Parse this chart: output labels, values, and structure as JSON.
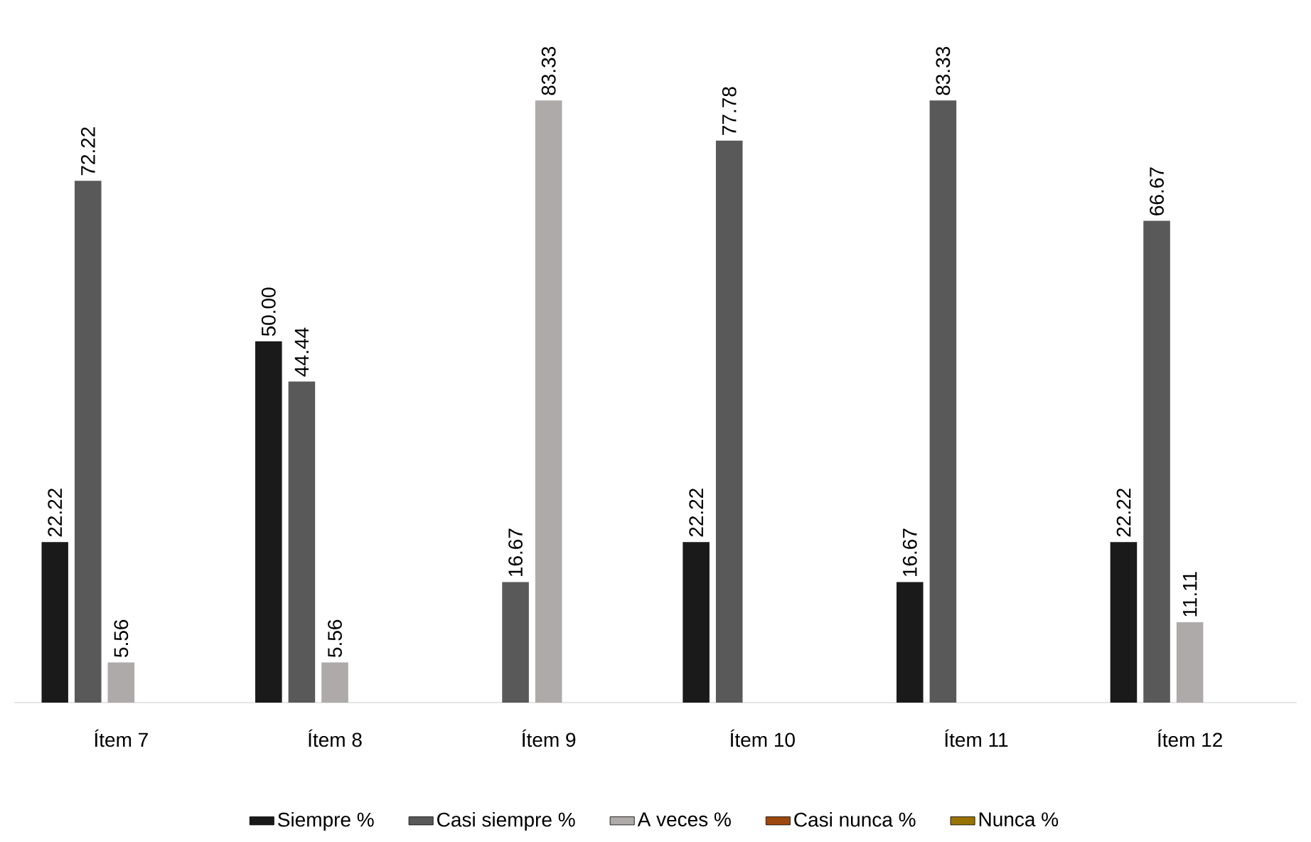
{
  "chart_data": {
    "type": "bar",
    "categories": [
      "Ítem 7",
      "Ítem 8",
      "Ítem 9",
      "Ítem 10",
      "Ítem 11",
      "Ítem 12"
    ],
    "series": [
      {
        "name": "Siempre %",
        "color": "#1a1a1a",
        "values": [
          22.22,
          50.0,
          null,
          22.22,
          16.67,
          22.22
        ],
        "value_labels": [
          "22.22",
          "50.00",
          null,
          "22.22",
          "16.67",
          "22.22"
        ]
      },
      {
        "name": "Casi siempre %",
        "color": "#595959",
        "values": [
          72.22,
          44.44,
          16.67,
          77.78,
          83.33,
          66.67
        ],
        "value_labels": [
          "72.22",
          "44.44",
          "16.67",
          "77.78",
          "83.33",
          "66.67"
        ]
      },
      {
        "name": "A veces %",
        "color": "#aeaaaa",
        "values": [
          5.56,
          5.56,
          83.33,
          null,
          null,
          11.11
        ],
        "value_labels": [
          "5.56",
          "5.56",
          "83.33",
          null,
          null,
          "11.11"
        ]
      },
      {
        "name": "Casi nunca %",
        "color": "#9e480e",
        "values": [
          null,
          null,
          null,
          null,
          null,
          null
        ],
        "value_labels": [
          null,
          null,
          null,
          null,
          null,
          null
        ]
      },
      {
        "name": "Nunca %",
        "color": "#997300",
        "values": [
          null,
          null,
          null,
          null,
          null,
          null
        ],
        "value_labels": [
          null,
          null,
          null,
          null,
          null,
          null
        ]
      }
    ],
    "legend": "bottom"
  }
}
